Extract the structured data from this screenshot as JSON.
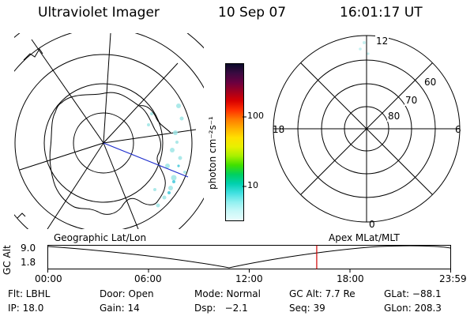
{
  "header": {
    "title": "Ultraviolet Imager",
    "date": "10 Sep 07",
    "time": "16:01:17 UT"
  },
  "left_map": {
    "caption": "Geographic Lat/Lon"
  },
  "right_map": {
    "caption": "Apex MLat/MLT",
    "mlt_labels": {
      "top": "12",
      "left": "18",
      "right": "6",
      "bottom": "0"
    },
    "lat_labels": [
      "60",
      "70",
      "80"
    ]
  },
  "colorbar": {
    "unit_label": "photon cm⁻²s⁻¹",
    "tick_labels": [
      "100",
      "10"
    ],
    "colors": [
      "#0a0a2a",
      "#3a0a40",
      "#6a0040",
      "#a00020",
      "#d80000",
      "#ff3000",
      "#ff7a00",
      "#ffb000",
      "#ffe000",
      "#e8f000",
      "#a8f000",
      "#40e000",
      "#00d060",
      "#00d0b0",
      "#40e0e0",
      "#90f0f0",
      "#c8f8f8",
      "#e8fcfc"
    ]
  },
  "timeline": {
    "ylabel": "GC Alt",
    "yticks": [
      "9.0",
      "1.8"
    ],
    "xticks": [
      "00:00",
      "06:00",
      "12:00",
      "18:00",
      "23:59"
    ],
    "marker_time_hours": 16.02,
    "marker_color": "#d00000"
  },
  "info": {
    "flt": "Flt: LBHL",
    "door": "Door: Open",
    "mode": "Mode: Normal",
    "gc_alt": "GC Alt: 7.7 Re",
    "glat": "GLat: −88.1",
    "ip": "IP: 18.0",
    "gain": "Gain: 14",
    "dsp": "Dsp:   −2.1",
    "seq": "Seq: 39",
    "glon": "GLon: 208.3"
  }
}
